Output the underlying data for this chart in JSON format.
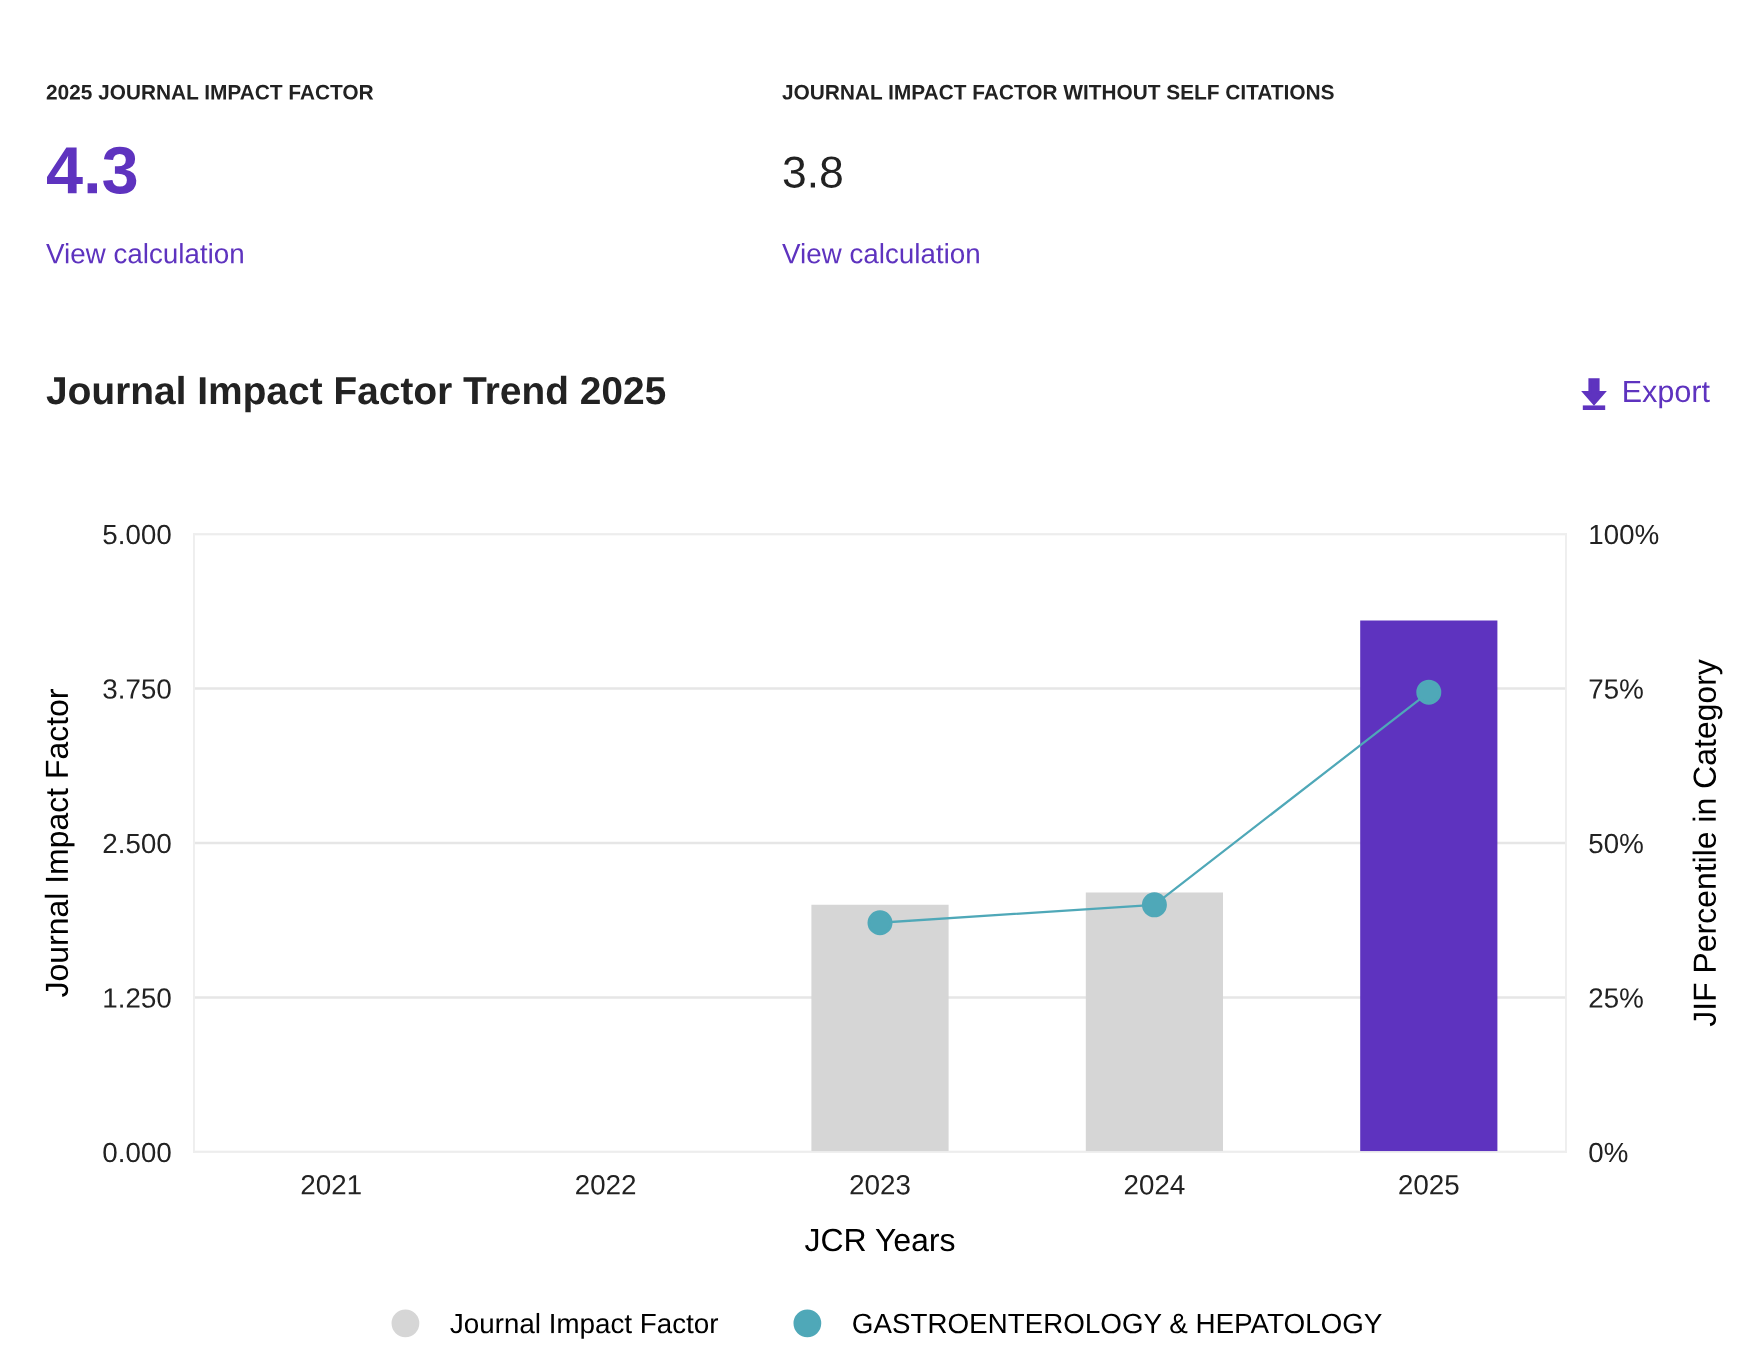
{
  "chart_data": [
    {
      "type": "other",
      "annotations": [
        "2025 JOURNAL IMPACT FACTOR",
        "4.3",
        "View calculation",
        "JOURNAL IMPACT FACTOR WITHOUT SELF CITATIONS",
        "3.8",
        "View calculation"
      ]
    },
    {
      "type": "bar",
      "title": "Journal Impact Factor Trend 2025",
      "xlabel": "JCR Years",
      "ylabel": "Journal Impact Factor",
      "y2label": "JIF Percentile in Category",
      "annotations": [
        "Export"
      ],
      "categories": [
        "2021",
        "2022",
        "2023",
        "2024",
        "2025"
      ],
      "series": [
        {
          "name": "Journal Impact Factor",
          "type": "bar",
          "color": "#d6d6d6",
          "colors": [
            "#d6d6d6",
            "#d6d6d6",
            "#d6d6d6",
            "#d6d6d6",
            "#5e33bf"
          ],
          "values": [
            null,
            null,
            2.0,
            2.1,
            4.3
          ]
        },
        {
          "name": "GASTROENTEROLOGY & HEPATOLOGY",
          "type": "line",
          "axis": "y2",
          "color": "#4fa8b8",
          "marker": "circle",
          "values": [
            null,
            null,
            37.1,
            40.0,
            74.4
          ]
        }
      ],
      "ylim": [
        0,
        5
      ],
      "yticks": [
        {
          "value": 0,
          "label": "0.000"
        },
        {
          "value": 1.25,
          "label": "1.250"
        },
        {
          "value": 2.5,
          "label": "2.500"
        },
        {
          "value": 3.75,
          "label": "3.750"
        },
        {
          "value": 5,
          "label": "5.000"
        }
      ],
      "y2lim": [
        0,
        100
      ],
      "y2ticks": [
        {
          "value": 0,
          "label": "0%"
        },
        {
          "value": 25,
          "label": "25%"
        },
        {
          "value": 50,
          "label": "50%"
        },
        {
          "value": 75,
          "label": "75%"
        },
        {
          "value": 100,
          "label": "100%"
        }
      ],
      "grid": "y",
      "legend": "bottom"
    }
  ]
}
